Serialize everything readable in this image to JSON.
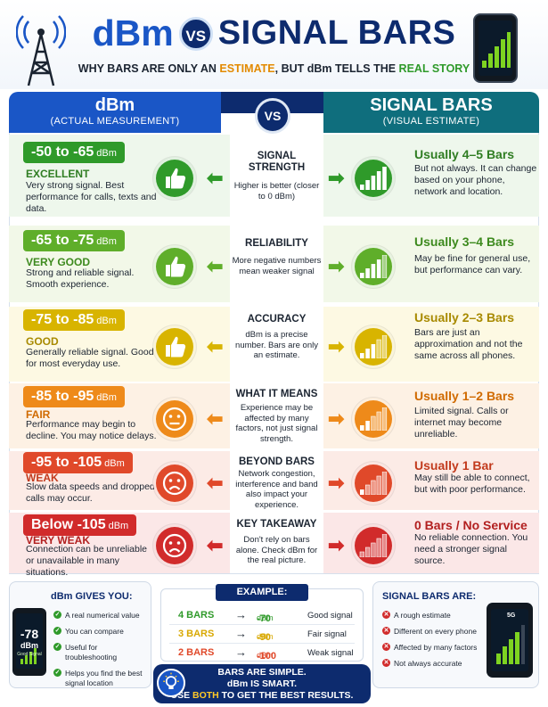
{
  "header": {
    "title_dbm": "dBm",
    "title_vs": "VS",
    "title_bars": "SIGNAL BARS",
    "subtitle_a": "WHY BARS ARE ONLY AN ",
    "subtitle_estimate": "ESTIMATE",
    "subtitle_b": ", BUT dBm TELLS THE ",
    "subtitle_real": "REAL STORY"
  },
  "columns": {
    "dbm_title": "dBm",
    "dbm_subtitle": "(ACTUAL MEASUREMENT)",
    "vs": "VS",
    "bars_title": "SIGNAL BARS",
    "bars_subtitle": "(VISUAL ESTIMATE)"
  },
  "rows": [
    {
      "range": "-50 to -65",
      "unit": "dBm",
      "grade": "EXCELLENT",
      "desc": "Very strong signal. Best performance for calls, texts and data.",
      "mid_title": "SIGNAL STRENGTH",
      "mid_desc": "Higher is better (closer to 0 dBm)",
      "bars_title": "Usually 4–5 Bars",
      "bars_desc": "But not always. It can change based on your phone, network and location.",
      "color": "#2f9a2a",
      "bg": "#eef7ec",
      "grade_color": "#2f7d22",
      "face": "thumb",
      "bars_lit": 5
    },
    {
      "range": "-65 to -75",
      "unit": "dBm",
      "grade": "VERY GOOD",
      "desc": "Strong and reliable signal. Smooth experience.",
      "mid_title": "RELIABILITY",
      "mid_desc": "More negative numbers mean weaker signal",
      "bars_title": "Usually 3–4 Bars",
      "bars_desc": "May be fine for general use, but performance can vary.",
      "color": "#5fae2a",
      "bg": "#f2f8e8",
      "grade_color": "#3d8a1e",
      "face": "thumb",
      "bars_lit": 4
    },
    {
      "range": "-75 to -85",
      "unit": "dBm",
      "grade": "GOOD",
      "desc": "Generally reliable signal. Good for most everyday use.",
      "mid_title": "ACCURACY",
      "mid_desc": "dBm is a precise number. Bars are only an estimate.",
      "bars_title": "Usually 2–3 Bars",
      "bars_desc": "Bars are just an approximation and not the same across all phones.",
      "color": "#d8b400",
      "bg": "#fdf9e3",
      "grade_color": "#a88a00",
      "face": "thumb",
      "bars_lit": 3
    },
    {
      "range": "-85 to -95",
      "unit": "dBm",
      "grade": "FAIR",
      "desc": "Performance may begin to decline. You may notice delays.",
      "mid_title": "WHAT IT MEANS",
      "mid_desc": "Experience may be affected by many factors, not just signal strength.",
      "bars_title": "Usually 1–2 Bars",
      "bars_desc": "Limited signal. Calls or internet may become unreliable.",
      "color": "#ee8a1a",
      "bg": "#fdf1e4",
      "grade_color": "#d06a00",
      "face": "neutral",
      "bars_lit": 2
    },
    {
      "range": "-95 to -105",
      "unit": "dBm",
      "grade": "WEAK",
      "desc": "Slow data speeds and dropped calls may occur.",
      "mid_title": "BEYOND BARS",
      "mid_desc": "Network congestion, interference and band also impact your experience.",
      "bars_title": "Usually 1 Bar",
      "bars_desc": "May still be able to connect, but with poor performance.",
      "color": "#e0492a",
      "bg": "#fcebe6",
      "grade_color": "#c23a1d",
      "face": "sad",
      "bars_lit": 1
    },
    {
      "range": "Below -105",
      "unit": "dBm",
      "grade": "VERY WEAK",
      "desc": "Connection can be unreliable or unavailable in many situations.",
      "mid_title": "KEY TAKEAWAY",
      "mid_desc": "Don't rely on bars alone. Check dBm for the real picture.",
      "bars_title": "0 Bars / No Service",
      "bars_desc": "No reliable connection. You need a stronger signal source.",
      "color": "#d12b2b",
      "bg": "#fbe7e7",
      "grade_color": "#b21f1f",
      "face": "sad",
      "bars_lit": 0
    }
  ],
  "gives": {
    "title": "dBm GIVES YOU:",
    "items": [
      "A real numerical value",
      "You can compare",
      "Useful for troubleshooting",
      "Helps you find the best signal location"
    ],
    "phone_value": "-78",
    "phone_unit": "dBm",
    "phone_label": "Good Signal"
  },
  "example": {
    "title": "EXAMPLE:",
    "rows": [
      {
        "bars": "4 BARS",
        "arrow": "→",
        "dbm": "-70",
        "unit": "dBm",
        "label": "Good signal",
        "color": "#2f9a2a"
      },
      {
        "bars": "3 BARS",
        "arrow": "→",
        "dbm": "-90",
        "unit": "dBm",
        "label": "Fair signal",
        "color": "#d8a800"
      },
      {
        "bars": "2 BARS",
        "arrow": "→",
        "dbm": "-100",
        "unit": "dBm",
        "label": "Weak signal",
        "color": "#e0492a"
      }
    ]
  },
  "bars_are": {
    "title": "SIGNAL BARS ARE:",
    "items": [
      "A rough estimate",
      "Different on every phone",
      "Affected by many factors",
      "Not always accurate"
    ],
    "phone_badge": "5G"
  },
  "tagline": {
    "line1": "BARS ARE SIMPLE.",
    "line2": "dBm IS SMART.",
    "line3a": "USE ",
    "line3_both": "BOTH",
    "line3b": " TO GET THE BEST RESULTS."
  },
  "colors": {
    "blue": "#1a56c6",
    "navy": "#0d2b6e",
    "teal": "#0f6e7d"
  },
  "icons": {
    "tower": "cell-tower-icon",
    "phone": "smartphone-icon",
    "bulb": "lightbulb-icon"
  }
}
